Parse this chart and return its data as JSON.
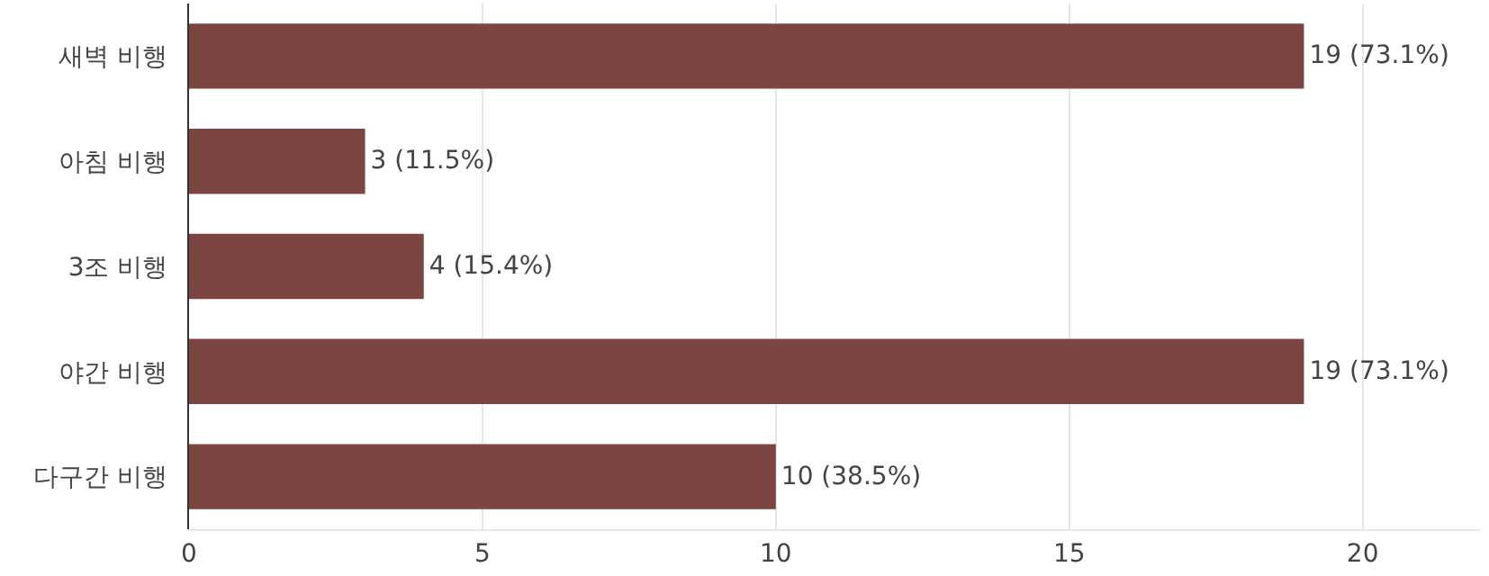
{
  "chart_data": {
    "type": "bar",
    "orientation": "horizontal",
    "categories": [
      "새벽 비행",
      "아침 비행",
      "3조 비행",
      "야간 비행",
      "다구간 비행"
    ],
    "values": [
      19,
      3,
      4,
      19,
      10
    ],
    "value_labels": [
      "19 (73.1%)",
      "3 (11.5%)",
      "4 (15.4%)",
      "19 (73.1%)",
      "10 (38.5%)"
    ],
    "color": "#7b4641",
    "xlim": [
      0,
      22
    ],
    "xticks": [
      0,
      5,
      10,
      15,
      20
    ],
    "grid": "x",
    "legend": false
  }
}
